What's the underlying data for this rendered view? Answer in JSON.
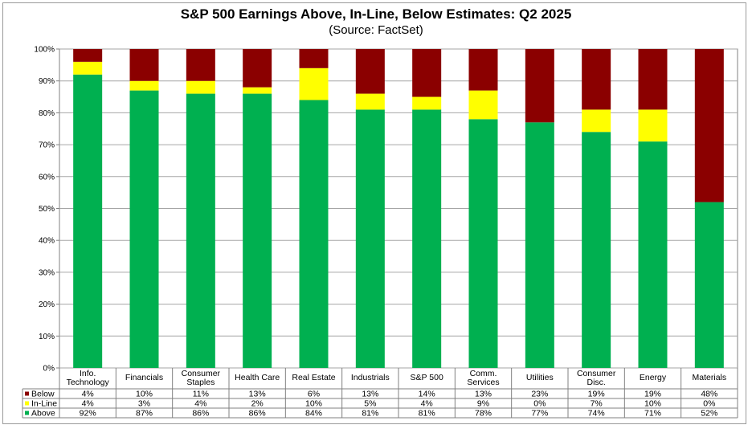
{
  "title": "S&P 500 Earnings Above, In-Line, Below Estimates: Q2 2025",
  "subtitle": "(Source: FactSet)",
  "colors": {
    "Above": "#00b050",
    "In-Line": "#ffff00",
    "Below": "#8b0000"
  },
  "chart_data": {
    "type": "bar",
    "stacked": true,
    "title": "S&P 500 Earnings Above, In-Line, Below Estimates: Q2 2025",
    "subtitle": "(Source: FactSet)",
    "categories": [
      [
        "Info.",
        "Technology"
      ],
      [
        "Financials"
      ],
      [
        "Consumer",
        "Staples"
      ],
      [
        "Health Care"
      ],
      [
        "Real Estate"
      ],
      [
        "Industrials"
      ],
      [
        "S&P 500"
      ],
      [
        "Comm.",
        "Services"
      ],
      [
        "Utilities"
      ],
      [
        "Consumer",
        "Disc."
      ],
      [
        "Energy"
      ],
      [
        "Materials"
      ]
    ],
    "series": [
      {
        "name": "Above",
        "values": [
          92,
          87,
          86,
          86,
          84,
          81,
          81,
          78,
          77,
          74,
          71,
          52
        ]
      },
      {
        "name": "In-Line",
        "values": [
          4,
          3,
          4,
          2,
          10,
          5,
          4,
          9,
          0,
          7,
          10,
          0
        ]
      },
      {
        "name": "Below",
        "values": [
          4,
          10,
          11,
          13,
          6,
          13,
          14,
          13,
          23,
          19,
          19,
          48
        ]
      }
    ],
    "table_rows": [
      "Below",
      "In-Line",
      "Above"
    ],
    "y_ticks": [
      "0%",
      "10%",
      "20%",
      "30%",
      "40%",
      "50%",
      "60%",
      "70%",
      "80%",
      "90%",
      "100%"
    ],
    "ylim": [
      0,
      100
    ],
    "grid": true,
    "legend": "data-table"
  }
}
